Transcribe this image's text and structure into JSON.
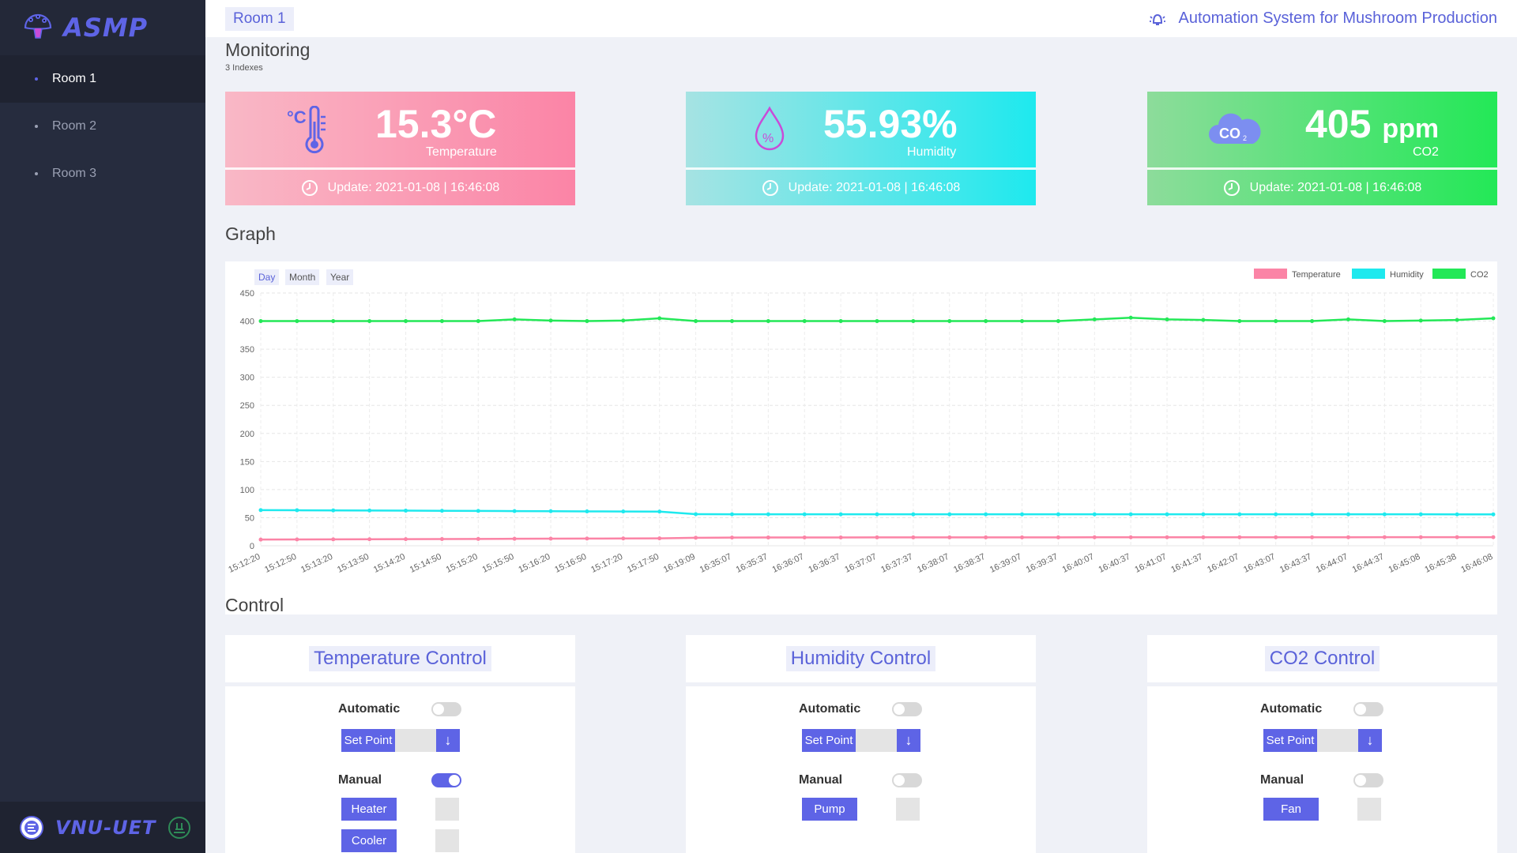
{
  "brand": {
    "name": "ASMP",
    "icon": "mushroom-icon"
  },
  "sidebar": {
    "items": [
      {
        "label": "Room 1",
        "active": true
      },
      {
        "label": "Room 2",
        "active": false
      },
      {
        "label": "Room 3",
        "active": false
      }
    ],
    "footer": {
      "text": "VNU-UET"
    }
  },
  "header": {
    "room_tab": "Room 1",
    "app_title": "Automation System for Mushroom Production",
    "title_icon": "bell-icon"
  },
  "monitoring": {
    "title": "Monitoring",
    "subtitle": "3 Indexes",
    "cards": [
      {
        "value": "15.3°C",
        "label": "Temperature",
        "update": "Update: 2021-01-08 | 16:46:08",
        "icon": "thermometer-icon"
      },
      {
        "value": "55.93%",
        "label": "Humidity",
        "update": "Update: 2021-01-08 | 16:46:08",
        "icon": "humidity-drop-icon"
      },
      {
        "value": "405",
        "unit": "ppm",
        "label": "CO2",
        "update": "Update: 2021-01-08 | 16:46:08",
        "icon": "co2-cloud-icon"
      }
    ]
  },
  "graph": {
    "title": "Graph",
    "ranges": [
      "Day",
      "Month",
      "Year"
    ],
    "active_range": "Day"
  },
  "chart_data": {
    "type": "line",
    "categories": [
      "15:12:20",
      "15:12:50",
      "15:13:20",
      "15:13:50",
      "15:14:20",
      "15:14:50",
      "15:15:20",
      "15:15:50",
      "15:16:20",
      "15:16:50",
      "15:17:20",
      "15:17:50",
      "16:19:09",
      "16:35:07",
      "16:35:37",
      "16:36:07",
      "16:36:37",
      "16:37:07",
      "16:37:37",
      "16:38:07",
      "16:38:37",
      "16:39:07",
      "16:39:37",
      "16:40:07",
      "16:40:37",
      "16:41:07",
      "16:41:37",
      "16:42:07",
      "16:43:07",
      "16:43:37",
      "16:44:07",
      "16:44:37",
      "16:45:08",
      "16:45:38",
      "16:46:08"
    ],
    "series": [
      {
        "name": "Temperature",
        "color": "#fb84a6",
        "values": [
          11,
          11.2,
          11.4,
          11.6,
          11.8,
          12,
          12.2,
          12.4,
          12.6,
          12.8,
          13,
          13.2,
          14.2,
          14.6,
          14.7,
          14.8,
          14.8,
          14.9,
          14.9,
          15,
          15,
          15,
          15,
          15.1,
          15.1,
          15.1,
          15.1,
          15.2,
          15.2,
          15.2,
          15.2,
          15.3,
          15.3,
          15.3,
          15.3
        ]
      },
      {
        "name": "Humidity",
        "color": "#1ee9ee",
        "values": [
          63.5,
          63.2,
          63,
          62.7,
          62.5,
          62.2,
          62,
          61.7,
          61.5,
          61.2,
          61,
          60.8,
          56.2,
          56.1,
          56.1,
          56,
          56,
          56,
          56,
          56,
          56,
          56,
          56,
          56,
          56,
          56,
          56,
          56,
          56,
          56,
          56,
          56,
          56,
          55.9,
          55.93
        ]
      },
      {
        "name": "CO2",
        "color": "#23e857",
        "values": [
          400,
          400,
          400,
          400,
          400,
          400,
          400,
          403,
          401,
          400,
          401,
          405,
          400,
          400,
          400,
          400,
          400,
          400,
          400,
          400,
          400,
          400,
          400,
          403,
          406,
          403,
          402,
          400,
          400,
          400,
          403,
          400,
          401,
          402,
          405
        ]
      }
    ],
    "yticks": [
      0,
      50,
      100,
      150,
      200,
      250,
      300,
      350,
      400,
      450
    ],
    "ylim": [
      0,
      450
    ],
    "legend_position": "top-right",
    "grid": true
  },
  "control": {
    "title": "Control",
    "panels": [
      {
        "title": "Temperature Control",
        "auto_label": "Automatic",
        "auto_on": false,
        "setpoint_label": "Set Point",
        "arrow": "↓",
        "manual_label": "Manual",
        "manual_on": true,
        "devices": [
          "Heater",
          "Cooler"
        ]
      },
      {
        "title": "Humidity Control",
        "auto_label": "Automatic",
        "auto_on": false,
        "setpoint_label": "Set Point",
        "arrow": "↓",
        "manual_label": "Manual",
        "manual_on": false,
        "devices": [
          "Pump"
        ]
      },
      {
        "title": "CO2 Control",
        "auto_label": "Automatic",
        "auto_on": false,
        "setpoint_label": "Set Point",
        "arrow": "↓",
        "manual_label": "Manual",
        "manual_on": false,
        "devices": [
          "Fan"
        ]
      }
    ]
  }
}
